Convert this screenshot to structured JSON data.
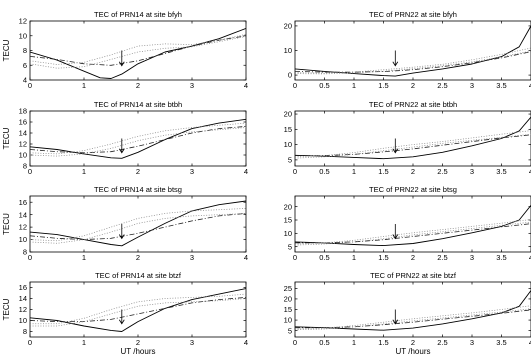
{
  "chart_data": [
    {
      "type": "line",
      "title": "TEC of PRN14 at site bfyh",
      "xlabel": "",
      "ylabel": "TECU",
      "xlim": [
        0,
        4
      ],
      "ylim": [
        4,
        12
      ],
      "xticks": [
        0,
        1,
        2,
        3,
        4
      ],
      "yticks": [
        4,
        6,
        8,
        10,
        12
      ],
      "arrow_x": 1.7,
      "series": [
        {
          "style": "solid",
          "x": [
            0,
            0.5,
            1,
            1.3,
            1.5,
            1.7,
            2,
            2.5,
            3,
            3.5,
            4
          ],
          "y": [
            7.8,
            6.7,
            5.2,
            4.3,
            4.2,
            4.8,
            6.2,
            7.8,
            8.6,
            9.6,
            11.0
          ]
        },
        {
          "style": "dashdot",
          "x": [
            0,
            0.5,
            1,
            1.5,
            2,
            2.5,
            3,
            3.5,
            4
          ],
          "y": [
            7.2,
            6.8,
            6.2,
            6.0,
            6.6,
            7.6,
            8.6,
            9.4,
            10.0
          ]
        },
        {
          "style": "dotted",
          "x": [
            0,
            0.5,
            1,
            1.5,
            2,
            2.5,
            3,
            3.5,
            4
          ],
          "y": [
            6.6,
            6.1,
            6.4,
            7.4,
            8.6,
            8.9,
            8.8,
            9.4,
            10.2
          ]
        },
        {
          "style": "dotted",
          "x": [
            0,
            0.5,
            1,
            1.5,
            2,
            2.5,
            3,
            3.5,
            4
          ],
          "y": [
            6.2,
            5.6,
            5.8,
            6.8,
            7.8,
            8.3,
            8.5,
            9.2,
            9.9
          ]
        }
      ]
    },
    {
      "type": "line",
      "title": "TEC of PRN22 at site bfyh",
      "xlabel": "",
      "ylabel": "",
      "xlim": [
        0,
        4
      ],
      "ylim": [
        -2,
        22
      ],
      "xticks": [
        0,
        0.5,
        1,
        1.5,
        2,
        2.5,
        3,
        3.5,
        4
      ],
      "yticks": [
        0,
        10,
        20
      ],
      "arrow_x": 1.7,
      "series": [
        {
          "style": "solid",
          "x": [
            0,
            0.5,
            1,
            1.5,
            1.7,
            2,
            2.5,
            3,
            3.5,
            3.8,
            4
          ],
          "y": [
            2.5,
            1.5,
            0.6,
            -0.2,
            -0.4,
            0.8,
            2.5,
            4.5,
            7.5,
            11.5,
            20.0
          ]
        },
        {
          "style": "dashdot",
          "x": [
            0,
            0.5,
            1,
            1.5,
            2,
            2.5,
            3,
            3.5,
            4
          ],
          "y": [
            1.5,
            1.2,
            1.2,
            1.4,
            2.2,
            3.4,
            5.0,
            7.0,
            9.5
          ]
        },
        {
          "style": "dotted",
          "x": [
            0,
            0.5,
            1,
            1.5,
            2,
            2.5,
            3,
            3.5,
            4
          ],
          "y": [
            1.0,
            0.8,
            1.2,
            2.2,
            3.2,
            4.4,
            6.2,
            8.4,
            11.0
          ]
        },
        {
          "style": "dotted",
          "x": [
            0,
            0.5,
            1,
            1.5,
            2,
            2.5,
            3,
            3.5,
            4
          ],
          "y": [
            0.6,
            0.5,
            0.9,
            1.6,
            2.6,
            3.8,
            5.4,
            7.4,
            9.8
          ]
        }
      ]
    },
    {
      "type": "line",
      "title": "TEC of PRN14 at site btbh",
      "xlabel": "",
      "ylabel": "TECU",
      "xlim": [
        0,
        4
      ],
      "ylim": [
        8,
        18
      ],
      "xticks": [
        0,
        1,
        2,
        3,
        4
      ],
      "yticks": [
        8,
        10,
        12,
        14,
        16,
        18
      ],
      "arrow_x": 1.7,
      "series": [
        {
          "style": "solid",
          "x": [
            0,
            0.5,
            1,
            1.5,
            1.7,
            2,
            2.5,
            3,
            3.5,
            4
          ],
          "y": [
            11.5,
            11.0,
            10.2,
            9.5,
            9.4,
            10.5,
            12.8,
            14.8,
            15.8,
            16.5
          ]
        },
        {
          "style": "dashdot",
          "x": [
            0,
            0.5,
            1,
            1.5,
            2,
            2.5,
            3,
            3.5,
            4
          ],
          "y": [
            11.0,
            10.6,
            10.4,
            10.6,
            11.6,
            12.8,
            14.0,
            14.8,
            15.2
          ]
        },
        {
          "style": "dotted",
          "x": [
            0,
            0.5,
            1,
            1.5,
            2,
            2.5,
            3,
            3.5,
            4
          ],
          "y": [
            10.4,
            10.2,
            10.8,
            12.0,
            13.4,
            14.4,
            15.0,
            15.4,
            15.8
          ]
        },
        {
          "style": "dotted",
          "x": [
            0,
            0.5,
            1,
            1.5,
            2,
            2.5,
            3,
            3.5,
            4
          ],
          "y": [
            10.0,
            9.8,
            10.2,
            11.2,
            12.6,
            13.6,
            14.2,
            14.6,
            15.0
          ]
        }
      ]
    },
    {
      "type": "line",
      "title": "TEC of PRN22 at site btbh",
      "xlabel": "",
      "ylabel": "",
      "xlim": [
        0,
        4
      ],
      "ylim": [
        3,
        21
      ],
      "xticks": [
        0,
        0.5,
        1,
        1.5,
        2,
        2.5,
        3,
        3.5,
        4
      ],
      "yticks": [
        5,
        10,
        15,
        20
      ],
      "arrow_x": 1.7,
      "series": [
        {
          "style": "solid",
          "x": [
            0,
            0.5,
            1,
            1.5,
            2,
            2.5,
            3,
            3.5,
            3.8,
            4
          ],
          "y": [
            6.5,
            6.2,
            5.8,
            5.4,
            6.0,
            7.5,
            9.6,
            12.0,
            14.5,
            19.0
          ]
        },
        {
          "style": "dashdot",
          "x": [
            0,
            0.5,
            1,
            1.5,
            2,
            2.5,
            3,
            3.5,
            4
          ],
          "y": [
            6.4,
            6.4,
            6.8,
            7.6,
            8.6,
            9.8,
            11.0,
            12.2,
            13.2
          ]
        },
        {
          "style": "dotted",
          "x": [
            0,
            0.5,
            1,
            1.5,
            2,
            2.5,
            3,
            3.5,
            4
          ],
          "y": [
            6.0,
            6.4,
            7.4,
            8.8,
            10.0,
            11.0,
            12.2,
            13.4,
            14.6
          ]
        },
        {
          "style": "dotted",
          "x": [
            0,
            0.5,
            1,
            1.5,
            2,
            2.5,
            3,
            3.5,
            4
          ],
          "y": [
            5.6,
            6.0,
            6.8,
            8.0,
            9.2,
            10.4,
            11.4,
            12.4,
            13.4
          ]
        }
      ]
    },
    {
      "type": "line",
      "title": "TEC of PRN14 at site btsg",
      "xlabel": "",
      "ylabel": "TECU",
      "xlim": [
        0,
        4
      ],
      "ylim": [
        8,
        17
      ],
      "xticks": [
        0,
        1,
        2,
        3,
        4
      ],
      "yticks": [
        8,
        10,
        12,
        14,
        16
      ],
      "arrow_x": 1.7,
      "series": [
        {
          "style": "solid",
          "x": [
            0,
            0.5,
            1,
            1.5,
            1.7,
            2,
            2.5,
            3,
            3.5,
            4
          ],
          "y": [
            11.2,
            10.8,
            10.0,
            9.2,
            9.0,
            10.4,
            12.6,
            14.6,
            15.6,
            16.2
          ]
        },
        {
          "style": "dashdot",
          "x": [
            0,
            0.5,
            1,
            1.5,
            2,
            2.5,
            3,
            3.5,
            4
          ],
          "y": [
            10.6,
            10.2,
            10.0,
            10.2,
            11.0,
            12.0,
            13.0,
            13.8,
            14.2
          ]
        },
        {
          "style": "dotted",
          "x": [
            0,
            0.5,
            1,
            1.5,
            2,
            2.5,
            3,
            3.5,
            4
          ],
          "y": [
            10.0,
            9.8,
            10.6,
            12.0,
            13.4,
            14.2,
            14.6,
            14.8,
            15.0
          ]
        },
        {
          "style": "dotted",
          "x": [
            0,
            0.5,
            1,
            1.5,
            2,
            2.5,
            3,
            3.5,
            4
          ],
          "y": [
            9.6,
            9.4,
            10.0,
            11.2,
            12.6,
            13.4,
            13.8,
            14.0,
            14.2
          ]
        }
      ]
    },
    {
      "type": "line",
      "title": "TEC of PRN22 at site btsg",
      "xlabel": "",
      "ylabel": "",
      "xlim": [
        0,
        4
      ],
      "ylim": [
        3,
        24
      ],
      "xticks": [
        0,
        0.5,
        1,
        1.5,
        2,
        2.5,
        3,
        3.5,
        4
      ],
      "yticks": [
        5,
        10,
        15,
        20
      ],
      "arrow_x": 1.7,
      "series": [
        {
          "style": "solid",
          "x": [
            0,
            0.5,
            1,
            1.5,
            2,
            2.5,
            3,
            3.5,
            3.8,
            4
          ],
          "y": [
            6.8,
            6.4,
            5.8,
            5.4,
            6.2,
            8.0,
            10.2,
            12.6,
            15.0,
            20.5
          ]
        },
        {
          "style": "dashdot",
          "x": [
            0,
            0.5,
            1,
            1.5,
            2,
            2.5,
            3,
            3.5,
            4
          ],
          "y": [
            6.4,
            6.4,
            6.8,
            7.6,
            8.8,
            10.0,
            11.2,
            12.4,
            13.6
          ]
        },
        {
          "style": "dotted",
          "x": [
            0,
            0.5,
            1,
            1.5,
            2,
            2.5,
            3,
            3.5,
            4
          ],
          "y": [
            6.0,
            6.4,
            7.4,
            8.8,
            10.2,
            11.4,
            12.6,
            13.8,
            15.2
          ]
        },
        {
          "style": "dotted",
          "x": [
            0,
            0.5,
            1,
            1.5,
            2,
            2.5,
            3,
            3.5,
            4
          ],
          "y": [
            5.6,
            6.0,
            6.8,
            8.0,
            9.4,
            10.6,
            11.8,
            13.0,
            14.2
          ]
        }
      ]
    },
    {
      "type": "line",
      "title": "TEC of PRN14 at site btzf",
      "xlabel": "UT /hours",
      "ylabel": "TECU",
      "xlim": [
        0,
        4
      ],
      "ylim": [
        7,
        17
      ],
      "xticks": [
        0,
        1,
        2,
        3,
        4
      ],
      "yticks": [
        8,
        10,
        12,
        14,
        16
      ],
      "arrow_x": 1.7,
      "series": [
        {
          "style": "solid",
          "x": [
            0,
            0.5,
            1,
            1.5,
            1.7,
            2,
            2.5,
            3,
            3.5,
            4
          ],
          "y": [
            10.5,
            10.0,
            9.0,
            8.2,
            8.0,
            9.8,
            12.2,
            13.8,
            14.8,
            15.8
          ]
        },
        {
          "style": "dashdot",
          "x": [
            0,
            0.5,
            1,
            1.5,
            2,
            2.5,
            3,
            3.5,
            4
          ],
          "y": [
            10.0,
            9.8,
            9.8,
            10.2,
            11.2,
            12.2,
            13.2,
            13.8,
            14.2
          ]
        },
        {
          "style": "dotted",
          "x": [
            0,
            0.5,
            1,
            1.5,
            2,
            2.5,
            3,
            3.5,
            4
          ],
          "y": [
            9.4,
            9.4,
            10.4,
            12.0,
            13.4,
            14.0,
            14.2,
            14.4,
            14.8
          ]
        },
        {
          "style": "dotted",
          "x": [
            0,
            0.5,
            1,
            1.5,
            2,
            2.5,
            3,
            3.5,
            4
          ],
          "y": [
            9.0,
            9.0,
            9.8,
            11.2,
            12.6,
            13.2,
            13.4,
            13.6,
            14.0
          ]
        }
      ]
    },
    {
      "type": "line",
      "title": "TEC of PRN22 at site btzf",
      "xlabel": "UT /hours",
      "ylabel": "",
      "xlim": [
        0,
        4
      ],
      "ylim": [
        2,
        28
      ],
      "xticks": [
        0,
        0.5,
        1,
        1.5,
        2,
        2.5,
        3,
        3.5,
        4
      ],
      "yticks": [
        5,
        10,
        15,
        20,
        25
      ],
      "arrow_x": 1.7,
      "series": [
        {
          "style": "solid",
          "x": [
            0,
            0.5,
            1,
            1.5,
            2,
            2.5,
            3,
            3.5,
            3.8,
            4
          ],
          "y": [
            6.8,
            6.4,
            5.8,
            5.2,
            6.2,
            8.2,
            10.6,
            13.4,
            16.5,
            24.0
          ]
        },
        {
          "style": "dashdot",
          "x": [
            0,
            0.5,
            1,
            1.5,
            2,
            2.5,
            3,
            3.5,
            4
          ],
          "y": [
            6.4,
            6.4,
            6.8,
            7.8,
            9.0,
            10.4,
            11.8,
            13.2,
            14.8
          ]
        },
        {
          "style": "dotted",
          "x": [
            0,
            0.5,
            1,
            1.5,
            2,
            2.5,
            3,
            3.5,
            4
          ],
          "y": [
            5.8,
            6.2,
            7.4,
            9.0,
            10.6,
            12.0,
            13.4,
            15.0,
            16.8
          ]
        },
        {
          "style": "dotted",
          "x": [
            0,
            0.5,
            1,
            1.5,
            2,
            2.5,
            3,
            3.5,
            4
          ],
          "y": [
            5.4,
            5.8,
            6.8,
            8.2,
            9.6,
            11.0,
            12.4,
            13.8,
            15.4
          ]
        }
      ]
    }
  ]
}
